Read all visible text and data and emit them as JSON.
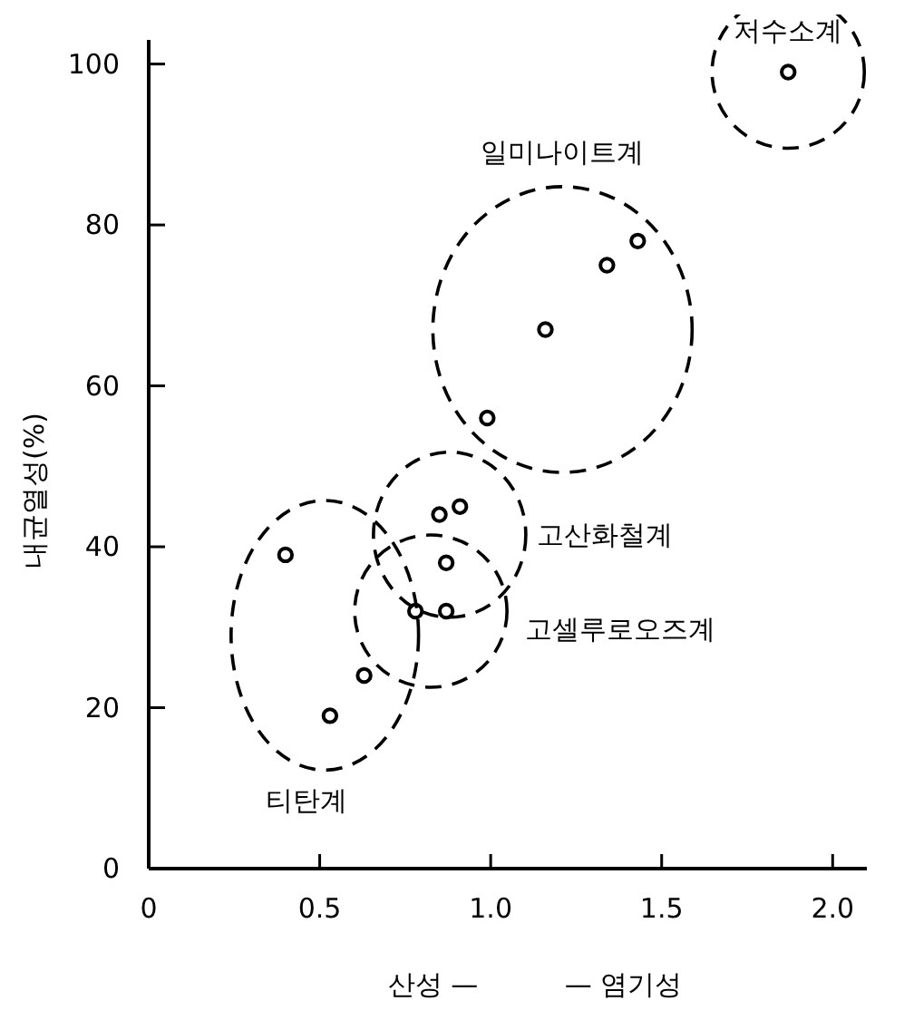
{
  "chart_data": {
    "type": "scatter",
    "xlabel": "산성 —          — 염기성",
    "ylabel": "내균열성(%)",
    "xlim": [
      0,
      2.1
    ],
    "ylim": [
      0,
      103
    ],
    "xticks": [
      0,
      0.5,
      {
        "value": 1,
        "label": "1.0"
      },
      1.5,
      {
        "value": 2,
        "label": "2.0"
      }
    ],
    "yticks": [
      0,
      20,
      40,
      60,
      80,
      100
    ],
    "grid": false,
    "marker": "circle",
    "series": [
      {
        "name": "티탄계",
        "color": "#000000",
        "x": [
          0.4,
          0.53,
          0.63
        ],
        "values": [
          39,
          19,
          24
        ]
      },
      {
        "name": "고셀루로오즈계",
        "color": "#000000",
        "x": [
          0.78,
          0.87
        ],
        "values": [
          32,
          32
        ]
      },
      {
        "name": "고산화철계",
        "color": "#000000",
        "x": [
          0.85,
          0.91,
          0.87
        ],
        "values": [
          44,
          45,
          38
        ]
      },
      {
        "name": "일미나이트계",
        "color": "#000000",
        "x": [
          0.99,
          1.16,
          1.34,
          1.43
        ],
        "values": [
          56,
          67,
          75,
          78
        ]
      },
      {
        "name": "저수소계",
        "color": "#000000",
        "x": [
          1.87
        ],
        "values": [
          99
        ]
      }
    ]
  }
}
